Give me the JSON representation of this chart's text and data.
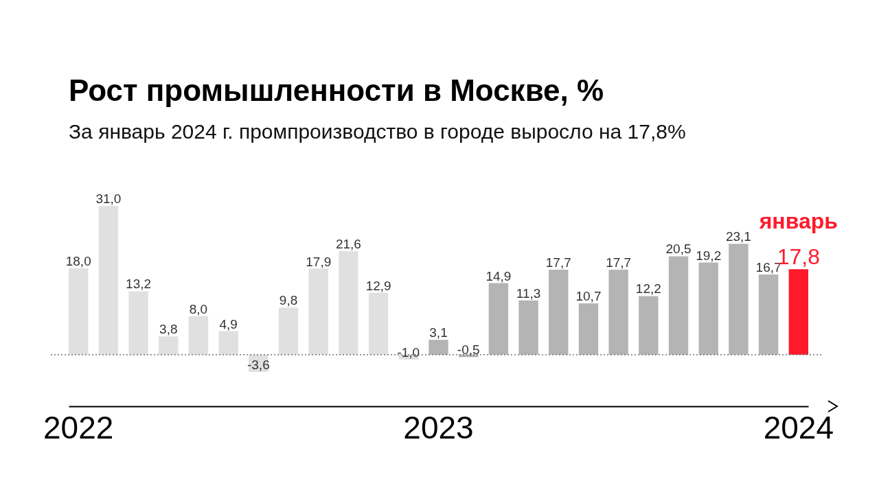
{
  "chart_data": {
    "type": "bar",
    "title": "Рост промышленности в Москве, %",
    "subtitle": "За январь 2024 г. промпроизводство в городе выросло на 17,8%",
    "categories": [
      "2022",
      null,
      null,
      null,
      null,
      null,
      null,
      null,
      null,
      null,
      null,
      null,
      "2023",
      null,
      null,
      null,
      null,
      null,
      null,
      null,
      null,
      null,
      null,
      null,
      "2024"
    ],
    "values": [
      18.0,
      31.0,
      13.2,
      3.8,
      8.0,
      4.9,
      -3.6,
      9.8,
      17.9,
      21.6,
      12.9,
      -1.0,
      3.1,
      -0.5,
      14.9,
      11.3,
      17.7,
      10.7,
      17.7,
      12.2,
      20.5,
      19.2,
      23.1,
      16.7,
      17.8
    ],
    "value_labels": [
      "18,0",
      "31,0",
      "13,2",
      "3,8",
      "8,0",
      "4,9",
      "-3,6",
      "9,8",
      "17,9",
      "21,6",
      "12,9",
      "-1,0",
      "3,1",
      "-0,5",
      "14,9",
      "11,3",
      "17,7",
      "10,7",
      "17,7",
      "12,2",
      "20,5",
      "19,2",
      "23,1",
      "16,7",
      "17,8"
    ],
    "colors": [
      "#e0e0e0",
      "#e0e0e0",
      "#e0e0e0",
      "#e0e0e0",
      "#e0e0e0",
      "#e0e0e0",
      "#e0e0e0",
      "#e0e0e0",
      "#e0e0e0",
      "#e0e0e0",
      "#e0e0e0",
      "#e0e0e0",
      "#b4b4b4",
      "#b4b4b4",
      "#b4b4b4",
      "#b4b4b4",
      "#b4b4b4",
      "#b4b4b4",
      "#b4b4b4",
      "#b4b4b4",
      "#b4b4b4",
      "#b4b4b4",
      "#b4b4b4",
      "#b4b4b4",
      "#ff1a2b"
    ],
    "ref_lines": [
      {
        "axis": "y",
        "value": 0,
        "label": null,
        "color": "#555555",
        "line_style": "dotted"
      }
    ],
    "annotations": [
      {
        "text": "январь",
        "x": "2024",
        "y": 17.8
      }
    ],
    "grid": false
  }
}
